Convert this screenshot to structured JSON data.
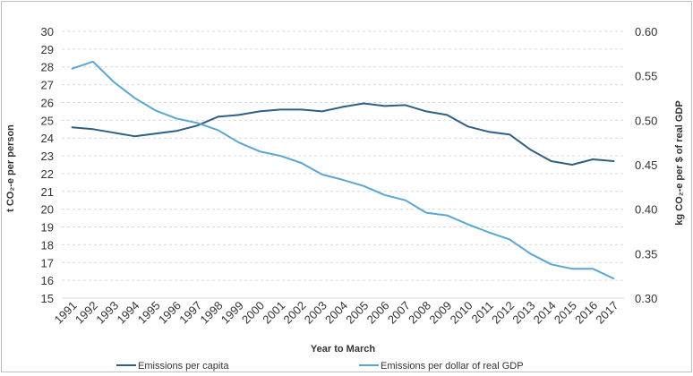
{
  "chart_data": {
    "type": "line",
    "title": "",
    "xlabel": "Year to March",
    "ylabel_left": "t CO₂-e per person",
    "ylabel_right": "kg CO₂-e per $ of real GDP",
    "categories": [
      "1991",
      "1992",
      "1993",
      "1994",
      "1995",
      "1996",
      "1997",
      "1998",
      "1999",
      "2000",
      "2001",
      "2002",
      "2003",
      "2004",
      "2005",
      "2006",
      "2007",
      "2008",
      "2009",
      "2010",
      "2011",
      "2012",
      "2013",
      "2014",
      "2015",
      "2016",
      "2017"
    ],
    "ylim_left": [
      15,
      30
    ],
    "yticks_left": [
      15,
      16,
      17,
      18,
      19,
      20,
      21,
      22,
      23,
      24,
      25,
      26,
      27,
      28,
      29,
      30
    ],
    "ylim_right": [
      0.3,
      0.6
    ],
    "yticks_right": [
      "0.30",
      "0.35",
      "0.40",
      "0.45",
      "0.50",
      "0.55",
      "0.60"
    ],
    "grid": true,
    "legend_position": "bottom",
    "series": [
      {
        "name": "Emissions per capita",
        "axis": "left",
        "color": "#2f5f86",
        "values": [
          24.6,
          24.5,
          24.3,
          24.1,
          24.25,
          24.4,
          24.7,
          25.2,
          25.3,
          25.5,
          25.6,
          25.6,
          25.5,
          25.75,
          25.95,
          25.8,
          25.85,
          25.5,
          25.3,
          24.65,
          24.35,
          24.2,
          23.35,
          22.7,
          22.5,
          22.8,
          22.7
        ]
      },
      {
        "name": "Emissions per dollar of real GDP",
        "axis": "right",
        "color": "#5aa6d6",
        "values": [
          0.558,
          0.566,
          0.543,
          0.525,
          0.511,
          0.502,
          0.497,
          0.489,
          0.475,
          0.465,
          0.46,
          0.452,
          0.439,
          0.433,
          0.426,
          0.416,
          0.41,
          0.396,
          0.393,
          0.383,
          0.374,
          0.366,
          0.35,
          0.338,
          0.333,
          0.333,
          0.322
        ]
      }
    ]
  }
}
